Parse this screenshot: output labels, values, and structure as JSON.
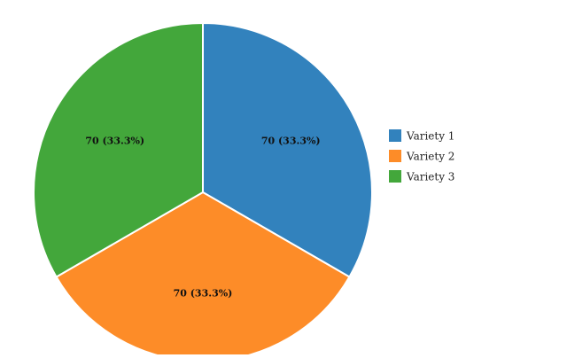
{
  "chart_data": {
    "type": "pie",
    "title": "",
    "categories": [
      "Variety 1",
      "Variety 2",
      "Variety 3"
    ],
    "values": [
      70,
      70,
      70
    ],
    "labels": [
      "70 (33.3%)",
      "70 (33.3%)",
      "70 (33.3%)"
    ],
    "colors": [
      "#3282bd",
      "#fd8c28",
      "#43a73b"
    ],
    "legend_position": "right"
  }
}
